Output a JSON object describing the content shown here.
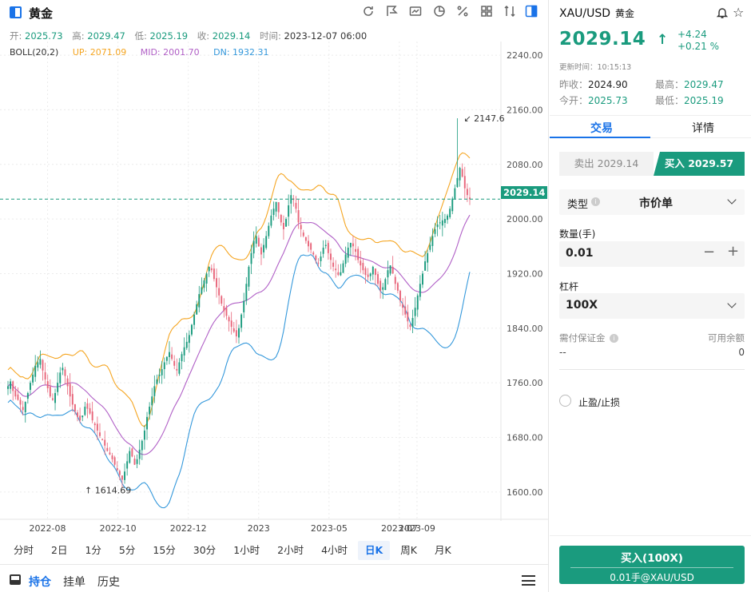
{
  "chart_header": {
    "title": "黄金",
    "ohlc": {
      "open_label": "开:",
      "open": "2025.73",
      "high_label": "高:",
      "high": "2029.47",
      "low_label": "低:",
      "low": "2025.19",
      "close_label": "收:",
      "close": "2029.14",
      "time_label": "时间:",
      "time": "2023-12-07 06:00"
    },
    "boll": {
      "name": "BOLL(20,2)",
      "up": "UP: 2071.09",
      "mid": "MID: 2001.70",
      "dn": "DN: 1932.31"
    },
    "toolbar_icons": [
      "refresh-icon",
      "draw-icon",
      "indicator-icon",
      "pie-chart-icon",
      "percent-icon",
      "grid-icon",
      "compare-icon",
      "layout-icon"
    ]
  },
  "chart_data": {
    "type": "candlestick",
    "y_ticks": [
      "2240.00",
      "2160.00",
      "2080.00",
      "2000.00",
      "1920.00",
      "1840.00",
      "1760.00",
      "1680.00",
      "1600.00"
    ],
    "ylim": [
      1560,
      2260
    ],
    "x_ticks": [
      "2022-08",
      "2022-10",
      "2022-12",
      "2023",
      "2023-05",
      "2023-07",
      "2023-09"
    ],
    "current_price": "2029.14",
    "high_marker": "2147.6",
    "low_marker": "1614.69",
    "bands": {
      "up_color": "#f5a623",
      "mid_color": "#b05fc6",
      "dn_color": "#3498db",
      "up_color_hint": "orange",
      "mid_color_hint": "purple",
      "dn_color_hint": "blue"
    },
    "close_series": [
      1755,
      1762,
      1748,
      1740,
      1735,
      1728,
      1720,
      1732,
      1745,
      1760,
      1772,
      1785,
      1790,
      1795,
      1778,
      1765,
      1752,
      1740,
      1735,
      1745,
      1760,
      1775,
      1782,
      1770,
      1755,
      1740,
      1728,
      1718,
      1710,
      1705,
      1712,
      1725,
      1722,
      1715,
      1705,
      1698,
      1690,
      1682,
      1676,
      1668,
      1660,
      1655,
      1648,
      1640,
      1632,
      1625,
      1618,
      1630,
      1645,
      1660,
      1652,
      1640,
      1648,
      1662,
      1675,
      1690,
      1710,
      1725,
      1740,
      1755,
      1765,
      1772,
      1780,
      1790,
      1798,
      1805,
      1795,
      1785,
      1778,
      1790,
      1802,
      1812,
      1820,
      1830,
      1845,
      1860,
      1875,
      1890,
      1900,
      1910,
      1920,
      1930,
      1925,
      1912,
      1900,
      1888,
      1876,
      1865,
      1858,
      1850,
      1842,
      1835,
      1828,
      1840,
      1860,
      1880,
      1905,
      1930,
      1950,
      1968,
      1975,
      1960,
      1948,
      1962,
      1975,
      1990,
      2005,
      2015,
      2025,
      2010,
      1995,
      1985,
      2000,
      2020,
      2035,
      2028,
      2015,
      1995,
      1985,
      1975,
      1968,
      1960,
      1955,
      1948,
      1940,
      1935,
      1945,
      1958,
      1962,
      1950,
      1940,
      1930,
      1925,
      1918,
      1922,
      1935,
      1948,
      1958,
      1965,
      1960,
      1952,
      1940,
      1932,
      1925,
      1918,
      1915,
      1920,
      1930,
      1918,
      1905,
      1895,
      1900,
      1912,
      1925,
      1932,
      1920,
      1905,
      1895,
      1880,
      1870,
      1860,
      1850,
      1842,
      1855,
      1870,
      1888,
      1905,
      1920,
      1938,
      1950,
      1962,
      1975,
      1985,
      1992,
      1995,
      1998,
      2000,
      2005,
      2015,
      2030,
      2045,
      2060,
      2075,
      2062,
      2045,
      2035,
      2029
    ],
    "high_bar_value": 2147.6
  },
  "periods": {
    "items": [
      "分时",
      "2日",
      "1分",
      "5分",
      "15分",
      "30分",
      "1小时",
      "2小时",
      "4小时",
      "日K",
      "周K",
      "月K"
    ],
    "active": "日K"
  },
  "bottom_tabs": {
    "positions": "持仓",
    "orders": "挂单",
    "history": "历史"
  },
  "quote": {
    "symbol": "XAU/USD",
    "name": "黄金",
    "price": "2029.14",
    "change": "+4.24",
    "change_pct": "+0.21 %",
    "update_time": "更新时间：10:15:13",
    "prev_close_label": "昨收：",
    "prev_close": "2024.90",
    "high_label": "最高：",
    "high": "2029.47",
    "open_label": "今开：",
    "open": "2025.73",
    "low_label": "最低：",
    "low": "2025.19",
    "up_color": "#1a9b7e"
  },
  "trade": {
    "tab_trade": "交易",
    "tab_detail": "详情",
    "sell_label": "卖出 2029.14",
    "buy_label": "买入 2029.57",
    "type_label": "类型",
    "type_value": "市价单",
    "qty_label": "数量(手)",
    "qty_value": "0.01",
    "leverage_label": "杠杆",
    "leverage_value": "100X",
    "margin_label": "需付保证金",
    "margin_value": "--",
    "available_label": "可用余额",
    "available_value": "0",
    "tpsl_label": "止盈/止损",
    "submit_main": "买入(100X)",
    "submit_sub": "0.01手@XAU/USD",
    "accent": "#1a9b7e",
    "tab_accent": "#1a73e8"
  }
}
